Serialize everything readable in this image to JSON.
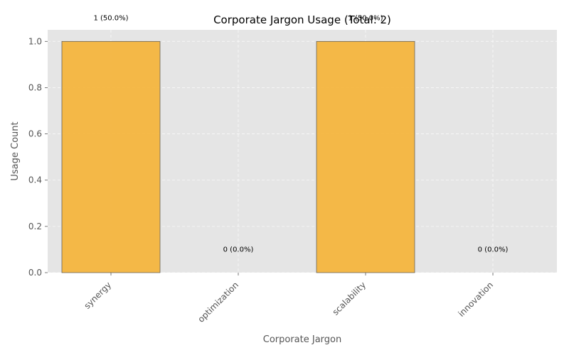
{
  "chart_data": {
    "type": "bar",
    "title": "Corporate Jargon Usage (Total: 2)",
    "xlabel": "Corporate Jargon",
    "ylabel": "Usage Count",
    "categories": [
      "synergy",
      "optimization",
      "scalability",
      "innovation"
    ],
    "values": [
      1,
      0,
      1,
      0
    ],
    "data_labels": [
      "1 (50.0%)",
      "0 (0.0%)",
      "1 (50.0%)",
      "0 (0.0%)"
    ],
    "ylim": [
      0,
      1.05
    ],
    "yticks": [
      0.0,
      0.2,
      0.4,
      0.6,
      0.8,
      1.0
    ],
    "ytick_labels": [
      "0.0",
      "0.2",
      "0.4",
      "0.6",
      "0.8",
      "1.0"
    ],
    "grid": true,
    "colors": {
      "bar_fill": "#f5b335",
      "bar_edge": "#555555",
      "plot_background": "#e5e5e5"
    }
  }
}
